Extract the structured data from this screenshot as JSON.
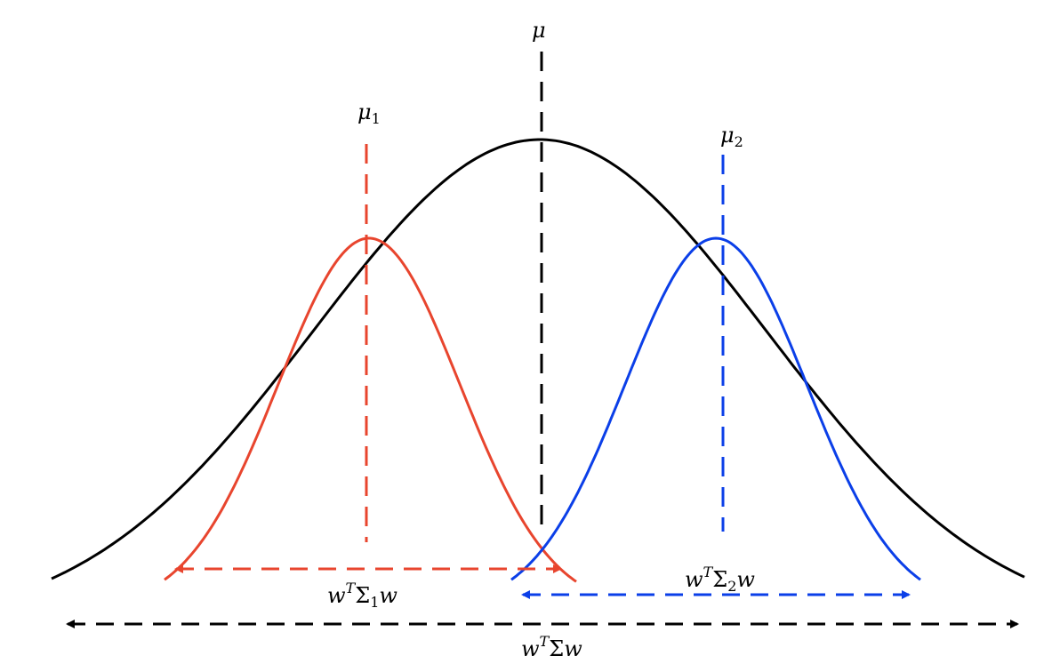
{
  "colors": {
    "overall": "#000000",
    "class1": "#e8452e",
    "class2": "#0b3fe8"
  },
  "labels": {
    "mu": {
      "base": "μ"
    },
    "mu1": {
      "base": "μ",
      "sub": "1"
    },
    "mu2": {
      "base": "μ",
      "sub": "2"
    },
    "w_sigma1_w": {
      "pre": "w",
      "sup": "T",
      "mid": "Σ",
      "sub": "1",
      "post": "w"
    },
    "w_sigma2_w": {
      "pre": "w",
      "sup": "T",
      "mid": "Σ",
      "sub": "2",
      "post": "w"
    },
    "w_sigma_w": {
      "pre": "w",
      "sup": "T",
      "mid": "Σ",
      "post": "w"
    }
  }
}
